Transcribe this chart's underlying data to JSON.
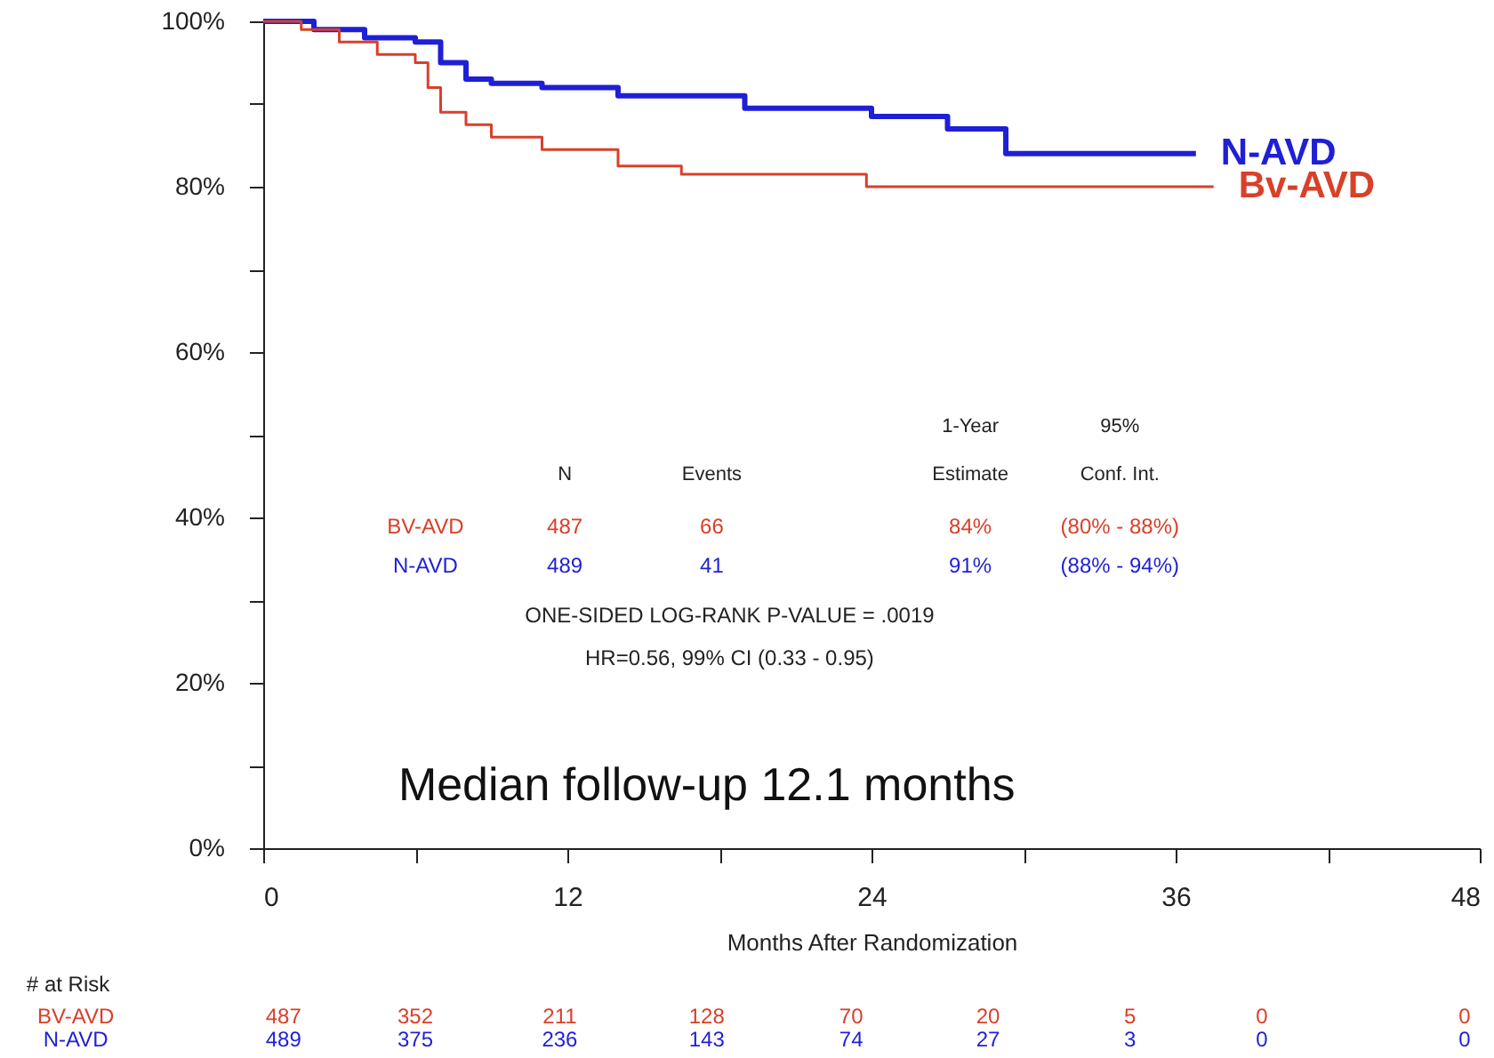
{
  "chart_data": {
    "type": "step",
    "xlabel": "Months After Randomization",
    "xlim": [
      0,
      48
    ],
    "xticks": [
      0,
      {
        "value": 6,
        "label": null
      },
      12,
      {
        "value": 18,
        "label": null
      },
      24,
      {
        "value": 30,
        "label": null
      },
      36,
      {
        "value": 42,
        "label": null
      },
      48
    ],
    "ylim": [
      0,
      100
    ],
    "yticks": [
      {
        "value": 0,
        "label": "0%"
      },
      {
        "value": 10,
        "label": null
      },
      {
        "value": 20,
        "label": "20%"
      },
      {
        "value": 30,
        "label": null
      },
      {
        "value": 40,
        "label": "40%"
      },
      {
        "value": 50,
        "label": null
      },
      {
        "value": 60,
        "label": "60%"
      },
      {
        "value": 70,
        "label": null
      },
      {
        "value": 80,
        "label": "80%"
      },
      {
        "value": 90,
        "label": null
      },
      {
        "value": 100,
        "label": "100%"
      }
    ],
    "grid": false,
    "marker": "none",
    "line_style": "solid",
    "series": [
      {
        "name": "N-AVD",
        "color": "#1f1fd6",
        "x": [
          0,
          2,
          4,
          6,
          7,
          8,
          9,
          11,
          14,
          19,
          24,
          27,
          29.3,
          36.8
        ],
        "values": [
          100,
          99,
          98,
          97.5,
          95,
          93,
          92.5,
          92,
          91,
          89.5,
          88.5,
          87,
          84,
          84
        ]
      },
      {
        "name": "Bv-AVD",
        "color": "#d8402a",
        "x": [
          0,
          1.5,
          3,
          4.5,
          6,
          6.5,
          7,
          8,
          9,
          11,
          14,
          16.5,
          23.8,
          37.5
        ],
        "values": [
          100,
          99,
          97.5,
          96,
          95,
          92,
          89,
          87.5,
          86,
          84.5,
          82.5,
          81.5,
          80,
          80
        ]
      }
    ],
    "annotations": [
      "N",
      "Events",
      "1-Year",
      "Estimate",
      "95%",
      "Conf. Int.",
      "BV-AVD",
      "487",
      "66",
      "84%",
      "(80% - 88%)",
      "N-AVD",
      "489",
      "41",
      "91%",
      "(88% - 94%)",
      "ONE-SIDED LOG-RANK P-VALUE = .0019",
      "HR=0.56, 99% CI (0.33 - 0.95)",
      "Median follow-up 12.1 months",
      "# at Risk",
      "BV-AVD",
      "487",
      "352",
      "211",
      "128",
      "70",
      "20",
      "5",
      "0",
      "0",
      "N-AVD",
      "489",
      "375",
      "236",
      "143",
      "74",
      "27",
      "3",
      "0",
      "0"
    ]
  }
}
